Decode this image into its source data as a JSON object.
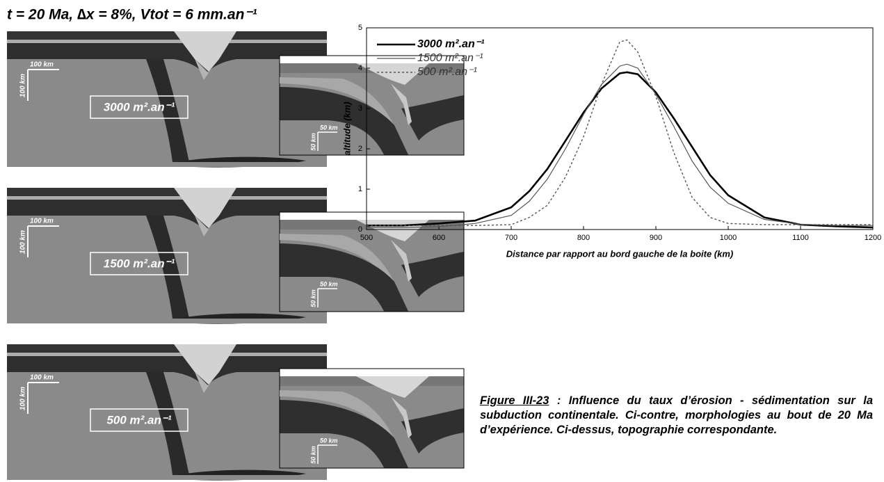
{
  "header": {
    "title": "t = 20 Ma, ∆x = 8%, Vtot = 6 mm.an⁻¹"
  },
  "panels": [
    {
      "label": "3000 m².an⁻¹",
      "scale": "100 km",
      "inset_scale": "50 km"
    },
    {
      "label": "1500 m².an⁻¹",
      "scale": "100 km",
      "inset_scale": "50 km"
    },
    {
      "label": "500 m².an⁻¹",
      "scale": "100 km",
      "inset_scale": "50 km"
    }
  ],
  "chart_data": {
    "type": "line",
    "x_label": "Distance par rapport au bord gauche de la boite (km)",
    "y_label": "altitude (km)",
    "x": [
      500,
      550,
      600,
      650,
      700,
      725,
      750,
      775,
      800,
      825,
      850,
      860,
      875,
      900,
      925,
      950,
      975,
      1000,
      1050,
      1100,
      1150,
      1200
    ],
    "series": [
      {
        "name": "3000 m².an⁻¹",
        "color": "#000000",
        "width": 2.6,
        "dash": "none",
        "values": [
          0.1,
          0.1,
          0.15,
          0.22,
          0.55,
          0.95,
          1.5,
          2.2,
          2.9,
          3.5,
          3.87,
          3.9,
          3.85,
          3.4,
          2.75,
          2.05,
          1.35,
          0.85,
          0.3,
          0.12,
          0.08,
          0.05
        ]
      },
      {
        "name": "1500 m².an⁻¹",
        "color": "#555555",
        "width": 1.2,
        "dash": "none",
        "values": [
          0.05,
          0.05,
          0.07,
          0.15,
          0.35,
          0.7,
          1.25,
          2.0,
          2.85,
          3.6,
          4.05,
          4.1,
          4.0,
          3.35,
          2.55,
          1.7,
          1.05,
          0.65,
          0.25,
          0.13,
          0.1,
          0.1
        ]
      },
      {
        "name": "500 m².an⁻¹",
        "color": "#555555",
        "width": 1.4,
        "dash": "3 3",
        "values": [
          0.1,
          0.1,
          0.1,
          0.1,
          0.12,
          0.3,
          0.6,
          1.3,
          2.3,
          3.6,
          4.65,
          4.7,
          4.4,
          3.3,
          1.9,
          0.8,
          0.3,
          0.15,
          0.12,
          0.12,
          0.12,
          0.12
        ]
      }
    ],
    "xlim": [
      500,
      1200
    ],
    "xticks": [
      500,
      600,
      700,
      800,
      900,
      1000,
      1100,
      1200
    ],
    "ylim": [
      0,
      5
    ],
    "yticks": [
      0,
      1,
      2,
      3,
      4,
      5
    ],
    "legend": "upper left"
  },
  "caption": {
    "label": "Figure III-23",
    "text": " : Influence du taux d’érosion - sédimentation sur la subduction continentale. Ci-contre, morphologies au bout de 20 Ma d’expérience. Ci-dessus, topographie correspondante."
  }
}
